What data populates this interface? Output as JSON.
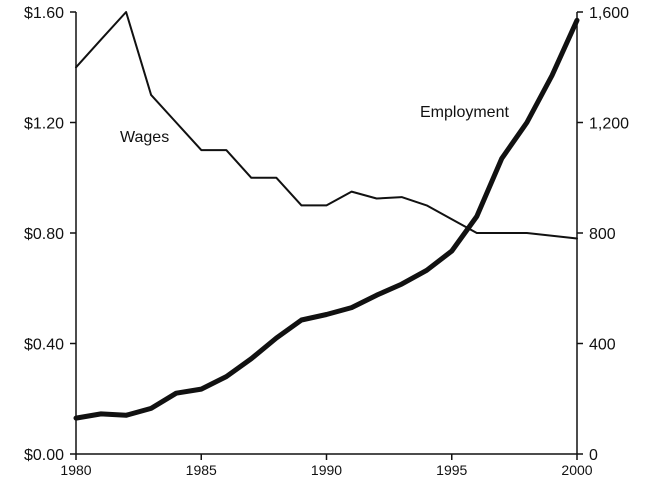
{
  "chart_data": {
    "type": "line",
    "title": "",
    "xlabel": "",
    "ylabel_left": "",
    "ylabel_right": "",
    "grid": false,
    "x_ticks": [
      "1980",
      "1985",
      "1990",
      "1995",
      "2000"
    ],
    "y_left_ticks": [
      "$0.00",
      "$0.40",
      "$0.80",
      "$1.20",
      "$1.60"
    ],
    "y_right_ticks": [
      "0",
      "400",
      "800",
      "1,200",
      "1,600"
    ],
    "xlim": [
      1980,
      2000
    ],
    "ylim_left": [
      0,
      1.6
    ],
    "ylim_right": [
      0,
      1600
    ],
    "series": [
      {
        "name": "Wages",
        "axis": "left",
        "color": "#111111",
        "x": [
          1980,
          1981,
          1982,
          1983,
          1984,
          1985,
          1986,
          1987,
          1988,
          1989,
          1990,
          1991,
          1992,
          1993,
          1994,
          1995,
          1996,
          1997,
          1998,
          1999,
          2000
        ],
        "values": [
          1.4,
          1.5,
          1.6,
          1.3,
          1.2,
          1.1,
          1.1,
          1.0,
          1.0,
          0.9,
          0.9,
          0.95,
          0.925,
          0.93,
          0.9,
          0.85,
          0.8,
          0.8,
          0.8,
          0.79,
          0.78
        ]
      },
      {
        "name": "Employment",
        "axis": "right",
        "color": "#111111",
        "x": [
          1980,
          1981,
          1982,
          1983,
          1984,
          1985,
          1986,
          1987,
          1988,
          1989,
          1990,
          1991,
          1992,
          1993,
          1994,
          1995,
          1996,
          1997,
          1998,
          1999,
          2000
        ],
        "values": [
          130,
          145,
          140,
          165,
          220,
          235,
          280,
          345,
          420,
          485,
          505,
          530,
          575,
          615,
          665,
          735,
          860,
          1070,
          1200,
          1370,
          1570
        ]
      }
    ]
  }
}
